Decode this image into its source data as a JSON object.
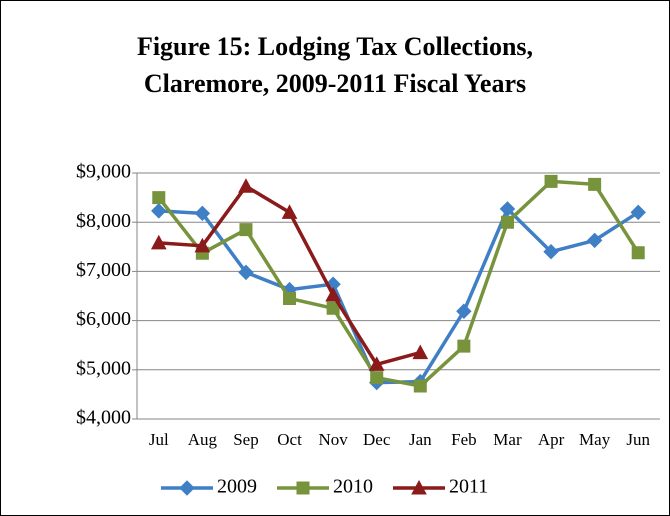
{
  "chart_data": {
    "type": "line",
    "title": [
      "Figure 15: Lodging Tax Collections,",
      "Claremore, 2009-2011 Fiscal Years"
    ],
    "categories": [
      "Jul",
      "Aug",
      "Sep",
      "Oct",
      "Nov",
      "Dec",
      "Jan",
      "Feb",
      "Mar",
      "Apr",
      "May",
      "Jun"
    ],
    "series": [
      {
        "name": "2009",
        "color": "#3f7fc5",
        "marker": "diamond",
        "values": [
          8230,
          8180,
          6980,
          6630,
          6740,
          4740,
          4760,
          6190,
          8270,
          7400,
          7630,
          8200
        ]
      },
      {
        "name": "2010",
        "color": "#77933c",
        "marker": "square",
        "values": [
          8500,
          7370,
          7850,
          6450,
          6250,
          4840,
          4670,
          5480,
          8000,
          8830,
          8770,
          7380
        ]
      },
      {
        "name": "2011",
        "color": "#8b1a1a",
        "marker": "triangle",
        "values": [
          7580,
          7520,
          8730,
          8200,
          6520,
          5110,
          5350,
          null,
          null,
          null,
          null,
          null
        ]
      }
    ],
    "ylim": [
      4000,
      9000
    ],
    "yticks": [
      {
        "value": 4000,
        "label": "$4,000"
      },
      {
        "value": 5000,
        "label": "$5,000"
      },
      {
        "value": 6000,
        "label": "$6,000"
      },
      {
        "value": 7000,
        "label": "$7,000"
      },
      {
        "value": 8000,
        "label": "$8,000"
      },
      {
        "value": 9000,
        "label": "$9,000"
      }
    ],
    "grid": true,
    "legend": "bottom"
  }
}
